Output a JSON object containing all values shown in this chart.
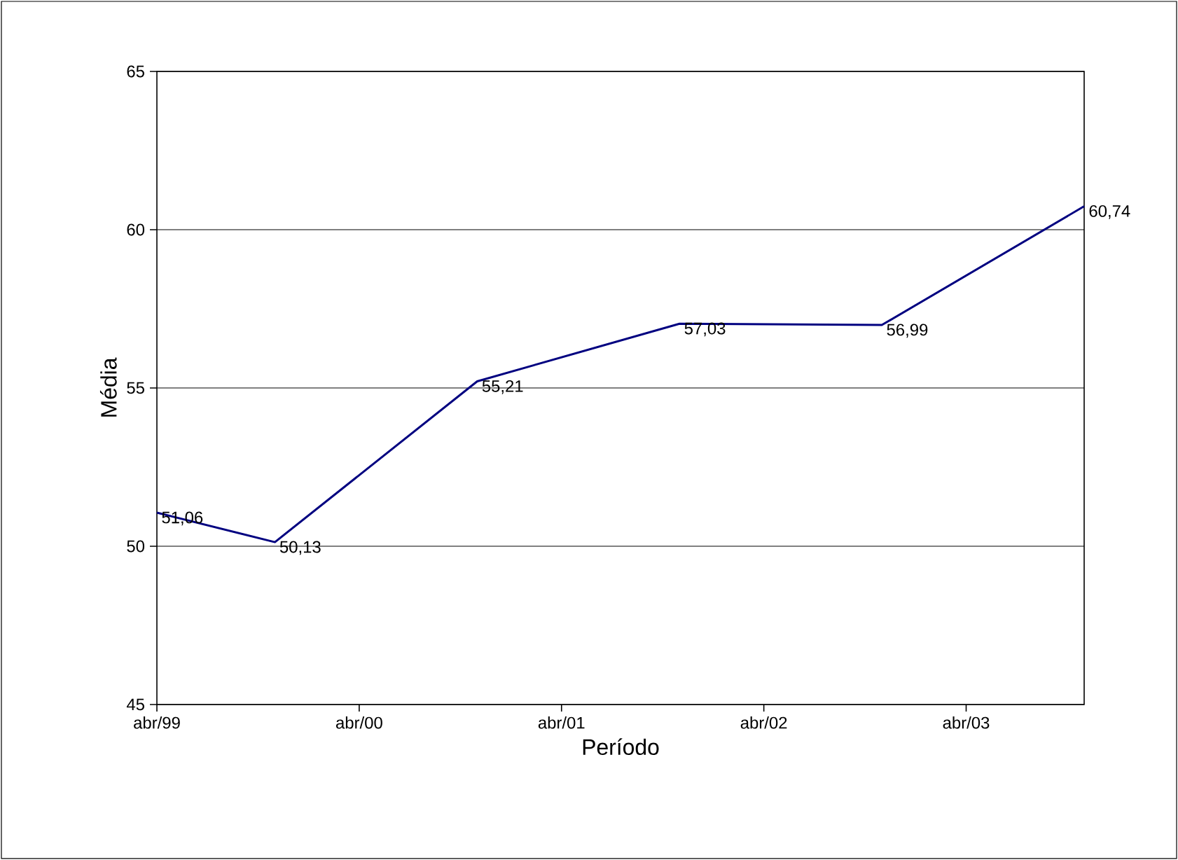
{
  "chart_data": {
    "type": "line",
    "xlabel": "Período",
    "ylabel": "Média",
    "x": [
      "1999-04",
      "1999-11",
      "2000-11",
      "2001-11",
      "2002-11",
      "2003-11"
    ],
    "series": [
      {
        "color": "#000080",
        "values": [
          51.06,
          50.13,
          55.21,
          57.03,
          56.99,
          60.74
        ],
        "value_labels": [
          "51,06",
          "50,13",
          "55,21",
          "57,03",
          "56,99",
          "60,74"
        ]
      }
    ],
    "xlim": [
      "1999-04",
      "2003-11"
    ],
    "xticks": [
      {
        "value": "1999-04",
        "label": "abr/99"
      },
      {
        "value": "2000-04",
        "label": "abr/00"
      },
      {
        "value": "2001-04",
        "label": "abr/01"
      },
      {
        "value": "2002-04",
        "label": "abr/02"
      },
      {
        "value": "2003-04",
        "label": "abr/03"
      }
    ],
    "ylim": [
      45,
      65
    ],
    "yticks": [
      45,
      50,
      55,
      60,
      65
    ],
    "grid": "y",
    "marker": "none",
    "line_style": "solid"
  }
}
